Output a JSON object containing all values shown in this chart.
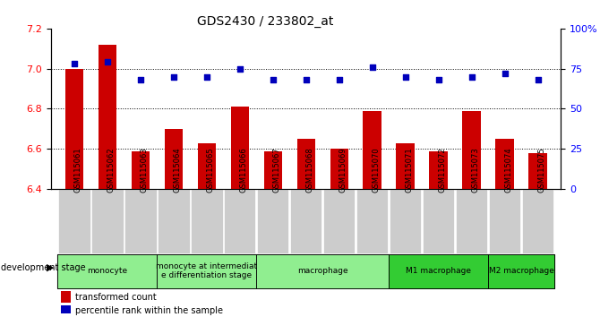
{
  "title": "GDS2430 / 233802_at",
  "samples": [
    "GSM115061",
    "GSM115062",
    "GSM115063",
    "GSM115064",
    "GSM115065",
    "GSM115066",
    "GSM115067",
    "GSM115068",
    "GSM115069",
    "GSM115070",
    "GSM115071",
    "GSM115072",
    "GSM115073",
    "GSM115074",
    "GSM115075"
  ],
  "transformed_count": [
    7.0,
    7.12,
    6.59,
    6.7,
    6.63,
    6.81,
    6.59,
    6.65,
    6.6,
    6.79,
    6.63,
    6.59,
    6.79,
    6.65,
    6.58
  ],
  "percentile_rank": [
    78,
    79,
    68,
    70,
    70,
    75,
    68,
    68,
    68,
    76,
    70,
    68,
    70,
    72,
    68
  ],
  "ylim_left": [
    6.4,
    7.2
  ],
  "ylim_right": [
    0,
    100
  ],
  "yticks_left": [
    6.4,
    6.6,
    6.8,
    7.0,
    7.2
  ],
  "yticks_right": [
    0,
    25,
    50,
    75,
    100
  ],
  "grid_values": [
    7.0,
    6.8,
    6.6
  ],
  "stage_groups": [
    {
      "label": "monocyte",
      "start": 0,
      "end": 2,
      "color": "#90EE90"
    },
    {
      "label": "monocyte at intermediat\ne differentiation stage",
      "start": 3,
      "end": 5,
      "color": "#90EE90"
    },
    {
      "label": "macrophage",
      "start": 6,
      "end": 9,
      "color": "#90EE90"
    },
    {
      "label": "M1 macrophage",
      "start": 10,
      "end": 12,
      "color": "#33CC33"
    },
    {
      "label": "M2 macrophage",
      "start": 13,
      "end": 14,
      "color": "#33CC33"
    }
  ],
  "bar_color": "#CC0000",
  "dot_color": "#0000BB",
  "tick_label_bg": "#CCCCCC"
}
